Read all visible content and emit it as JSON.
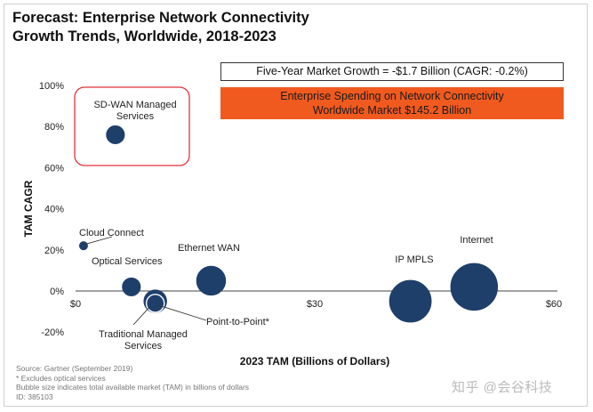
{
  "title_line1": "Forecast: Enterprise Network Connectivity",
  "title_line2": "Growth Trends, Worldwide, 2018-2023",
  "growth_box": "Five-Year Market Growth = -$1.7 Billion (CAGR: -0.2%)",
  "spending_line1": "Enterprise Spending on Network Connectivity",
  "spending_line2": "Worldwide Market $145.2 Billion",
  "footer": [
    "Source: Gartner (September 2019)",
    "* Excludes optical services",
    "Bubble size indicates total available market (TAM) in billions of dollars",
    "ID: 385103"
  ],
  "watermark": "知乎 @会谷科技",
  "colors": {
    "bubble": "#1f3f6b",
    "highlight": "#e0333a",
    "banner": "#f15a1f"
  },
  "chart_data": {
    "type": "scatter",
    "xlabel": "2023 TAM (Billions of Dollars)",
    "ylabel": "TAM CAGR",
    "xlim": [
      0,
      60
    ],
    "ylim": [
      -20,
      100
    ],
    "x_ticks": [
      "$0",
      "$30",
      "$60"
    ],
    "x_tick_values": [
      0,
      30,
      60
    ],
    "y_ticks": [
      "100%",
      "80%",
      "60%",
      "40%",
      "20%",
      "0%",
      "-20%"
    ],
    "y_tick_values": [
      100,
      80,
      60,
      40,
      20,
      0,
      -20
    ],
    "grid": false,
    "points": [
      {
        "label": "SD-WAN Managed Services",
        "x": 5,
        "y": 76,
        "size": 5
      },
      {
        "label": "Cloud Connect",
        "x": 1,
        "y": 22,
        "size": 1
      },
      {
        "label": "Optical Services",
        "x": 7,
        "y": 2,
        "size": 5
      },
      {
        "label": "Traditional Managed Services",
        "x": 10,
        "y": -5,
        "size": 8
      },
      {
        "label": "Point-to-Point*",
        "x": 10,
        "y": -6,
        "size": 5
      },
      {
        "label": "Ethernet WAN",
        "x": 17,
        "y": 5,
        "size": 13
      },
      {
        "label": "IP MPLS",
        "x": 42,
        "y": -5,
        "size": 27
      },
      {
        "label": "Internet",
        "x": 50,
        "y": 2,
        "size": 34
      }
    ],
    "highlight": "SD-WAN Managed Services"
  }
}
